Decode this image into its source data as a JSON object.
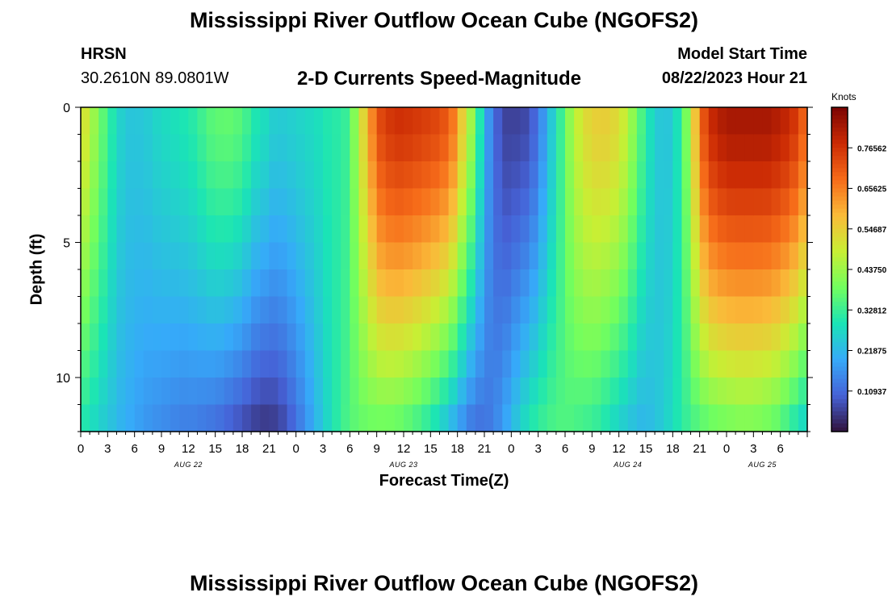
{
  "header": {
    "title": "Mississippi River Outflow Ocean Cube (NGOFS2)",
    "station_id": "HRSN",
    "station_coords": "30.2610N  89.0801W",
    "subtitle": "2-D Currents Speed-Magnitude",
    "start_label": "Model Start Time",
    "start_value": "08/22/2023 Hour 21"
  },
  "footer": {
    "title": "Mississippi River Outflow Ocean Cube (NGOFS2)"
  },
  "colors": {
    "background": "#ffffff",
    "colormap": [
      "#30123b",
      "#4662d7",
      "#36aaf9",
      "#1ae4b6",
      "#72fe5e",
      "#c8ef34",
      "#faba39",
      "#f66b19",
      "#cb2a04",
      "#7a0403"
    ]
  },
  "chart_data": {
    "type": "heatmap",
    "title": "2-D Currents Speed-Magnitude",
    "xlabel": "Forecast Time(Z)",
    "ylabel": "Depth (ft)",
    "x_range_hours": [
      0,
      81
    ],
    "x_step_hours": 1,
    "y_range_ft": [
      0,
      12
    ],
    "y_layers": 12,
    "y_ticks": [
      0,
      5,
      10
    ],
    "x_tick_labels": [
      "0",
      "3",
      "6",
      "9",
      "12",
      "15",
      "18",
      "21",
      "0",
      "3",
      "6",
      "9",
      "12",
      "15",
      "18",
      "21",
      "0",
      "3",
      "6",
      "9",
      "12",
      "15",
      "18",
      "21",
      "0",
      "3",
      "6"
    ],
    "date_labels": [
      {
        "hour": 12,
        "label": "AUG 22"
      },
      {
        "hour": 36,
        "label": "AUG 23"
      },
      {
        "hour": 61,
        "label": "AUG 24"
      },
      {
        "hour": 76,
        "label": "AUG 25"
      }
    ],
    "colorbar": {
      "unit": "Knots",
      "min": 0.0,
      "max": 0.875,
      "tick_values": [
        0.109375,
        0.21875,
        0.328125,
        0.4375,
        0.546875,
        0.65625,
        0.765625
      ],
      "tick_labels": [
        "0.10937",
        "0.21875",
        "0.32812",
        "0.43750",
        "0.54687",
        "0.65625",
        "0.76562"
      ]
    },
    "surface_speed_knots_by_hour": [
      0.5,
      0.42,
      0.34,
      0.27,
      0.24,
      0.24,
      0.25,
      0.27,
      0.28,
      0.29,
      0.3,
      0.33,
      0.36,
      0.37,
      0.37,
      0.35,
      0.3,
      0.28,
      0.25,
      0.25,
      0.26,
      0.27,
      0.28,
      0.3,
      0.31,
      0.33,
      0.47,
      0.62,
      0.73,
      0.76,
      0.77,
      0.76,
      0.75,
      0.74,
      0.72,
      0.66,
      0.52,
      0.39,
      0.2,
      0.1,
      0.06,
      0.06,
      0.07,
      0.12,
      0.22,
      0.31,
      0.42,
      0.5,
      0.54,
      0.55,
      0.54,
      0.5,
      0.42,
      0.33,
      0.26,
      0.23,
      0.26,
      0.38,
      0.58,
      0.76,
      0.8,
      0.82,
      0.82,
      0.82,
      0.82,
      0.82,
      0.8,
      0.78,
      0.72,
      0.6
    ],
    "bottom_speed_knots_by_hour": [
      0.3,
      0.27,
      0.24,
      0.21,
      0.19,
      0.17,
      0.16,
      0.15,
      0.14,
      0.14,
      0.13,
      0.12,
      0.1,
      0.08,
      0.06,
      0.05,
      0.06,
      0.1,
      0.15,
      0.21,
      0.27,
      0.32,
      0.36,
      0.38,
      0.39,
      0.39,
      0.38,
      0.36,
      0.33,
      0.29,
      0.24,
      0.18,
      0.13,
      0.12,
      0.15,
      0.2,
      0.26,
      0.3,
      0.33,
      0.35,
      0.35,
      0.34,
      0.33,
      0.3,
      0.27,
      0.24,
      0.22,
      0.23,
      0.26,
      0.3,
      0.34,
      0.37,
      0.39,
      0.4,
      0.41,
      0.41,
      0.4,
      0.38,
      0.34,
      0.29,
      0.25
    ]
  }
}
